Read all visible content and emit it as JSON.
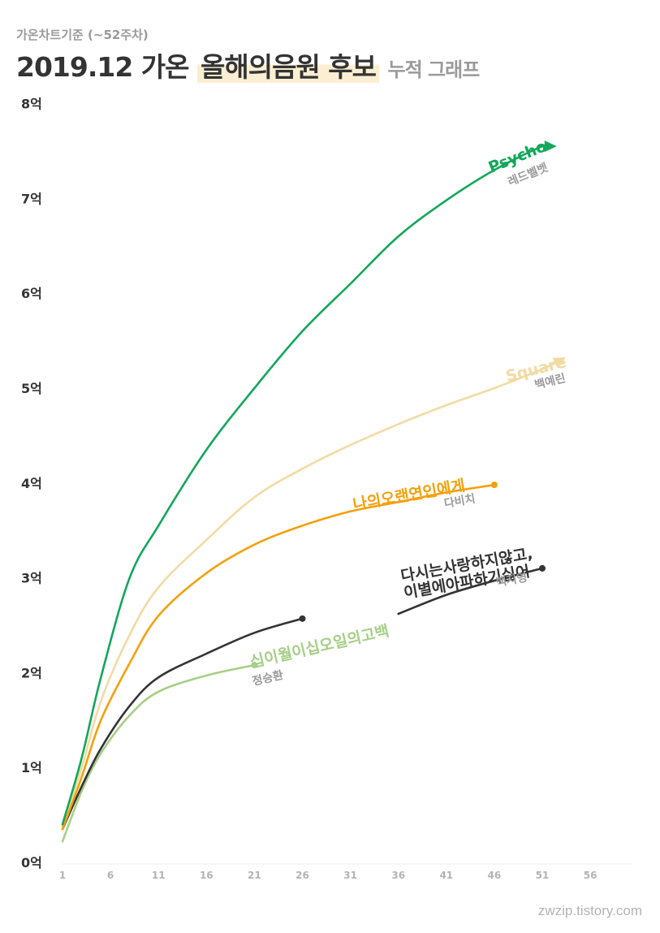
{
  "header": {
    "subtitle": "가온차트기준 (~52주차)",
    "title_plain": "2019.12 가온",
    "title_highlight": "올해의음원 후보",
    "title_suffix": "누적 그래프"
  },
  "credit": "zwzip.tistory.com",
  "colors": {
    "psycho": "#12a75a",
    "square": "#f2dba3",
    "orange": "#f5a00b",
    "dark": "#333333",
    "lightgreen": "#a5cf86",
    "artist": "#9a9a9a"
  },
  "chart_data": {
    "type": "line",
    "title": "2019.12 가온 올해의음원 후보 누적 그래프",
    "ylim": [
      0,
      8
    ],
    "xlim": [
      1,
      60
    ],
    "yticks": [
      0,
      1,
      2,
      3,
      4,
      5,
      6,
      7,
      8
    ],
    "ytick_labels": [
      "0억",
      "1억",
      "2억",
      "3억",
      "4억",
      "5억",
      "6억",
      "7억",
      "8억"
    ],
    "xticks": [
      1,
      6,
      11,
      16,
      21,
      26,
      31,
      36,
      41,
      46,
      51,
      56
    ],
    "series": [
      {
        "name": "Psycho",
        "artist": "레드벨벳",
        "key": "psycho",
        "end": "arrow",
        "x": [
          1,
          3,
          5,
          8,
          11,
          16,
          21,
          26,
          31,
          36,
          41,
          46,
          51,
          52
        ],
        "y": [
          0.4,
          1.1,
          1.95,
          3.0,
          3.55,
          4.35,
          5.0,
          5.6,
          6.1,
          6.6,
          6.98,
          7.3,
          7.55,
          7.55
        ]
      },
      {
        "name": "Square",
        "artist": "백예린",
        "key": "square",
        "end": "arrow",
        "x": [
          1,
          3,
          5,
          8,
          11,
          16,
          21,
          26,
          31,
          36,
          41,
          46,
          51,
          53
        ],
        "y": [
          0.38,
          1.0,
          1.7,
          2.4,
          2.9,
          3.4,
          3.85,
          4.15,
          4.4,
          4.62,
          4.82,
          5.0,
          5.2,
          5.3
        ]
      },
      {
        "name": "나의오랜연인에게",
        "artist": "다비치",
        "key": "orange",
        "end": "dot",
        "x": [
          1,
          3,
          5,
          8,
          11,
          16,
          21,
          26,
          31,
          36,
          41,
          46
        ],
        "y": [
          0.35,
          0.9,
          1.5,
          2.1,
          2.6,
          3.05,
          3.35,
          3.55,
          3.7,
          3.8,
          3.9,
          3.98
        ]
      },
      {
        "name": "다시는사랑하지않고,\n이별에아파하기싫어",
        "artist": "백지영",
        "key": "dark",
        "end": "dot",
        "x": [
          1,
          3,
          5,
          8,
          11,
          16,
          21,
          26
        ],
        "y": [
          0.35,
          0.8,
          1.2,
          1.65,
          1.95,
          2.2,
          2.42,
          2.57
        ],
        "x2": [
          36,
          41,
          46,
          51
        ],
        "y2": [
          2.62,
          2.82,
          2.97,
          3.1
        ]
      },
      {
        "name": "십이월이십오일의고백",
        "artist": "정승환",
        "key": "lightgreen",
        "end": "dot",
        "x": [
          1,
          3,
          5,
          8,
          11,
          16,
          21
        ],
        "y": [
          0.22,
          0.75,
          1.15,
          1.55,
          1.8,
          1.97,
          2.08
        ]
      }
    ]
  }
}
